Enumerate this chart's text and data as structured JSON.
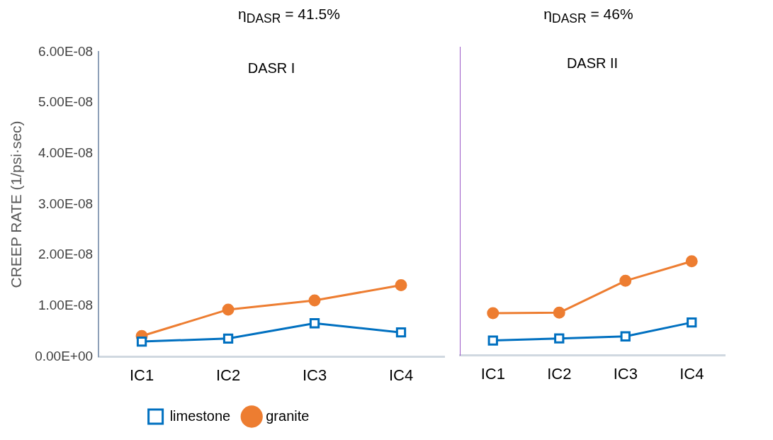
{
  "chart_data": [
    {
      "type": "line",
      "title": "η$_{DASR}$ = 41.5%",
      "ylabel": "CREEP RATE (1/psi·sec)",
      "categories": [
        "IC1",
        "IC2",
        "IC3",
        "IC4"
      ],
      "annotations": [
        "DASR I"
      ],
      "series": [
        {
          "name": "limestone",
          "color": "#0070c0",
          "marker": "square",
          "values": [
            3e-09,
            3.6e-09,
            6.6e-09,
            4.8e-09
          ]
        },
        {
          "name": "granite",
          "color": "#ed7d31",
          "marker": "circle",
          "values": [
            4.1e-09,
            9.3e-09,
            1.11e-08,
            1.41e-08
          ]
        }
      ],
      "ylim": [
        0,
        6e-08
      ],
      "yticks": [
        {
          "value": 0,
          "label": "0.00E+00"
        },
        {
          "value": 1e-08,
          "label": "1.00E-08"
        },
        {
          "value": 2e-08,
          "label": "2.00E-08"
        },
        {
          "value": 3e-08,
          "label": "3.00E-08"
        },
        {
          "value": 4e-08,
          "label": "4.00E-08"
        },
        {
          "value": 5e-08,
          "label": "5.00E-08"
        },
        {
          "value": 6e-08,
          "label": "6.00E-08"
        }
      ],
      "grid": false,
      "legend": "bottom"
    },
    {
      "type": "line",
      "title": "η$_{DASR}$ = 46%",
      "categories": [
        "IC1",
        "IC2",
        "IC3",
        "IC4"
      ],
      "annotations": [
        "DASR II"
      ],
      "series": [
        {
          "color": "#0070c0",
          "marker": "square",
          "values": [
            2.9e-09,
            3.3e-09,
            3.7e-09,
            6.4e-09
          ]
        },
        {
          "color": "#ed7d31",
          "marker": "circle",
          "values": [
            8.2e-09,
            8.3e-09,
            1.45e-08,
            1.83e-08
          ]
        }
      ],
      "ylim": [
        0,
        6e-08
      ],
      "grid": false,
      "tick_labels": "x"
    }
  ]
}
